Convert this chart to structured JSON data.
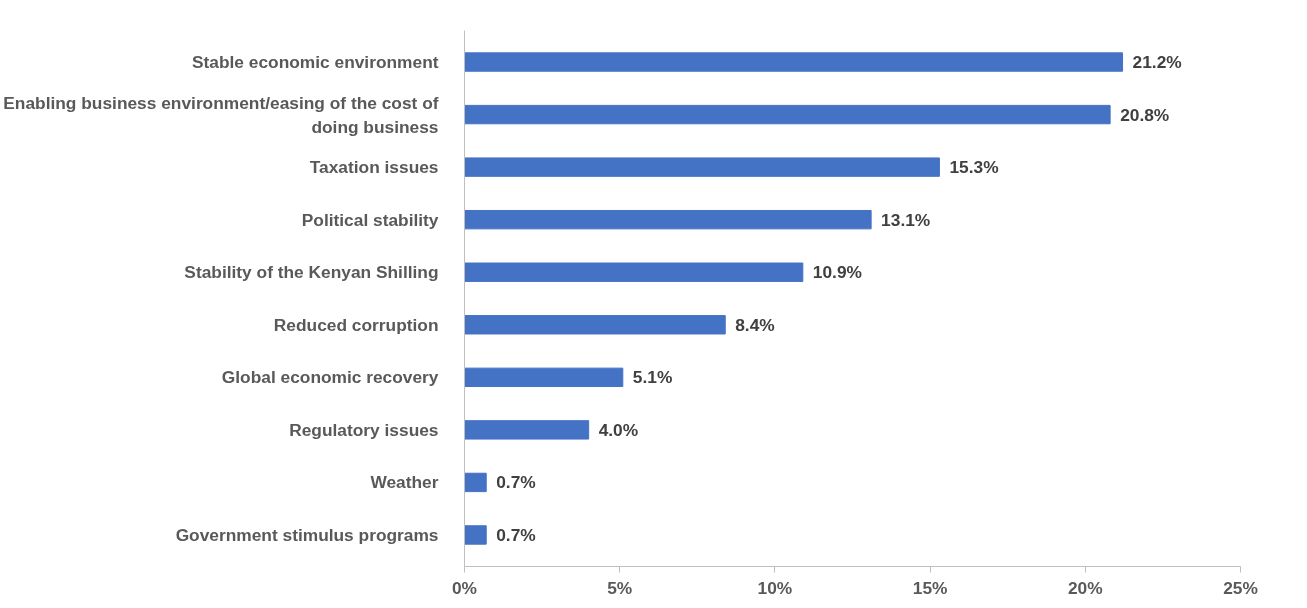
{
  "chart_data": {
    "type": "bar",
    "orientation": "horizontal",
    "categories": [
      "Stable economic environment",
      "Enabling business environment/easing of the cost of doing business",
      "Taxation issues",
      "Political stability",
      "Stability of the Kenyan Shilling",
      "Reduced corruption",
      "Global economic recovery",
      "Regulatory issues",
      "Weather",
      "Government stimulus programs"
    ],
    "values": [
      21.2,
      20.8,
      15.3,
      13.1,
      10.9,
      8.4,
      5.1,
      4.0,
      0.7,
      0.7
    ],
    "value_labels": [
      "21.2%",
      "20.8%",
      "15.3%",
      "13.1%",
      "10.9%",
      "8.4%",
      "5.1%",
      "4.0%",
      "0.7%",
      "0.7%"
    ],
    "color": "#4472c4",
    "xlim": [
      0,
      25
    ],
    "xticks": [
      {
        "value": 0,
        "label": "0%"
      },
      {
        "value": 5,
        "label": "5%"
      },
      {
        "value": 10,
        "label": "10%"
      },
      {
        "value": 15,
        "label": "15%"
      },
      {
        "value": 20,
        "label": "20%"
      },
      {
        "value": 25,
        "label": "25%"
      }
    ],
    "grid": false
  }
}
